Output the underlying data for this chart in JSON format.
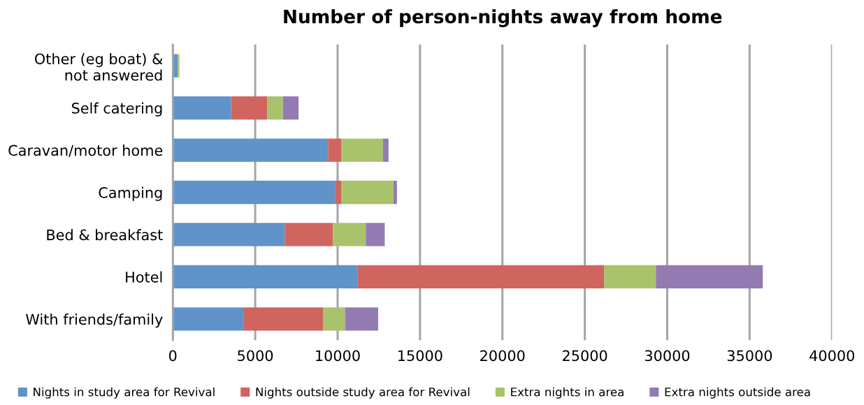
{
  "chart_data": {
    "type": "bar",
    "title": "Number of person-nights away from home",
    "orientation": "horizontal",
    "stacked": true,
    "categories": [
      "Other (eg boat) &\nnot answered",
      "Self catering",
      "Caravan/motor home",
      "Camping",
      "Bed & breakfast",
      "Hotel",
      "With friends/family"
    ],
    "series": [
      {
        "name": "Nights in study area for Revival",
        "color": "#5f93c9",
        "values": [
          300,
          3540,
          9420,
          9840,
          6790,
          11200,
          4280
        ]
      },
      {
        "name": "Nights outside study area for Revival",
        "color": "#d0655f",
        "values": [
          0,
          2200,
          820,
          400,
          2930,
          14970,
          4830
        ]
      },
      {
        "name": "Extra nights in area",
        "color": "#a9c36c",
        "values": [
          100,
          940,
          2510,
          3150,
          1990,
          3140,
          1340
        ]
      },
      {
        "name": "Extra nights outside area",
        "color": "#937bb1",
        "values": [
          0,
          950,
          340,
          210,
          1150,
          6490,
          2010
        ]
      }
    ],
    "xlim": [
      0,
      40000
    ],
    "xticks": [
      0,
      5000,
      10000,
      15000,
      20000,
      25000,
      30000,
      35000,
      40000
    ],
    "grid": "x",
    "legend": "bottom"
  }
}
